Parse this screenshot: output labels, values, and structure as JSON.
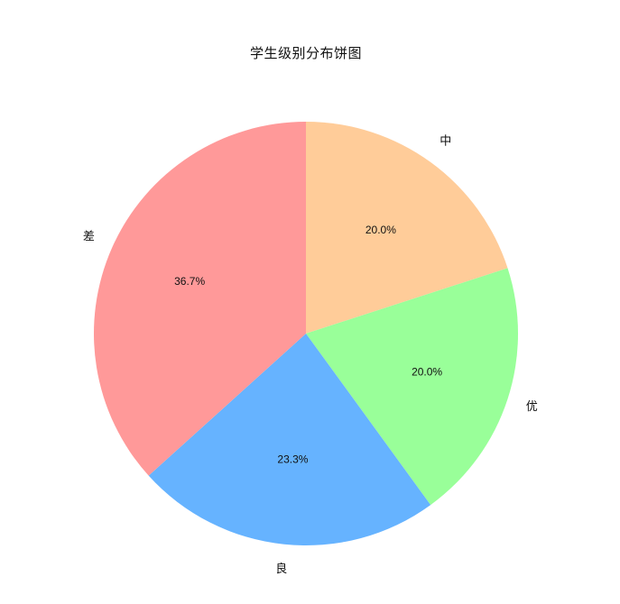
{
  "figure": {
    "title": "学生级别分布饼图",
    "background_color": "#ffffff",
    "text_color": "#111111"
  },
  "chart_data": {
    "type": "pie",
    "title": "学生级别分布饼图",
    "labels": [
      "中",
      "优",
      "良",
      "差"
    ],
    "values": [
      20.0,
      20.0,
      23.3,
      36.7
    ],
    "pct_labels": [
      "20.0%",
      "20.0%",
      "23.3%",
      "36.7%"
    ],
    "colors": [
      "#ffcc99",
      "#99ff99",
      "#66b3ff",
      "#ff9999"
    ],
    "start_angle": "top",
    "direction": "clockwise",
    "pct_distance": 0.6,
    "label_distance": 1.12,
    "legend": "none",
    "axes": "none"
  }
}
